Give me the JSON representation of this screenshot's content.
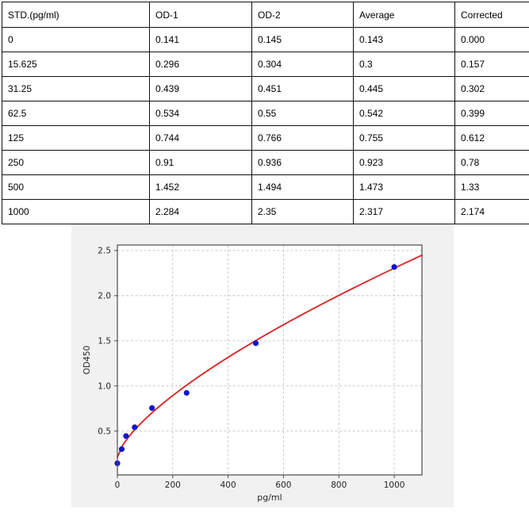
{
  "table": {
    "columns": [
      "STD.(pg/ml)",
      "OD-1",
      "OD-2",
      "Average",
      "Corrected"
    ],
    "rows": [
      [
        "0",
        "0.141",
        "0.145",
        "0.143",
        "0.000"
      ],
      [
        "15.625",
        "0.296",
        "0.304",
        "0.3",
        "0.157"
      ],
      [
        "31.25",
        "0.439",
        "0.451",
        "0.445",
        "0.302"
      ],
      [
        "62.5",
        "0.534",
        "0.55",
        "0.542",
        "0.399"
      ],
      [
        "125",
        "0.744",
        "0.766",
        "0.755",
        "0.612"
      ],
      [
        "250",
        "0.91",
        "0.936",
        "0.923",
        "0.78"
      ],
      [
        "500",
        "1.452",
        "1.494",
        "1.473",
        "1.33"
      ],
      [
        "1000",
        "2.284",
        "2.35",
        "2.317",
        "2.174"
      ]
    ]
  },
  "chart_data": {
    "type": "scatter",
    "title": "",
    "xlabel": "pg/ml",
    "ylabel": "OD450",
    "xlim": [
      0,
      1100
    ],
    "ylim": [
      0.014,
      2.561
    ],
    "x_ticks": [
      0,
      200,
      400,
      600,
      800,
      1000
    ],
    "y_ticks": [
      0.5,
      1.0,
      1.5,
      2.0,
      2.5
    ],
    "y_tick_labels": [
      "0.5",
      "1.0",
      "1.5",
      "2.0",
      "2.5"
    ],
    "grid": true,
    "grid_style": "dashed",
    "points": {
      "x": [
        0,
        15.625,
        31.25,
        62.5,
        125,
        250,
        500,
        1000
      ],
      "y": [
        0.143,
        0.3,
        0.445,
        0.542,
        0.755,
        0.923,
        1.473,
        2.317
      ]
    },
    "fit_curve": {
      "type": "power",
      "formula": "y = 0.21 + 0.0171 * x^0.696",
      "a": 0.0171,
      "b": 0.696,
      "c": 0.21,
      "x_start": 0,
      "x_end": 1100
    },
    "colors": {
      "point": "#1414cd",
      "curve": "#d92b2b",
      "figure_bg": "#f1f1f1",
      "plot_bg": "#ffffff",
      "grid": "#c4c4c4",
      "spine": "#4a4a4a",
      "tick_text": "#262626"
    }
  }
}
